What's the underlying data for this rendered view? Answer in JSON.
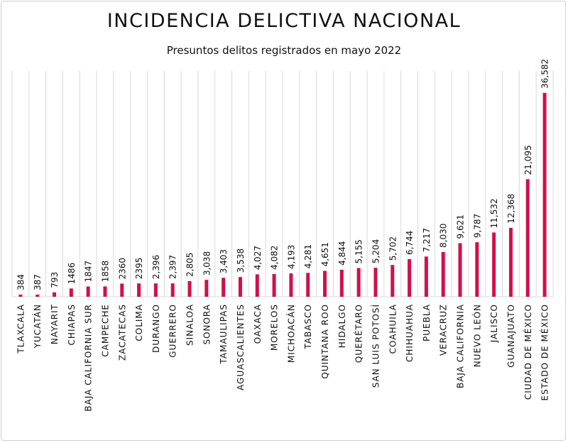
{
  "chart_data": {
    "type": "bar",
    "title": "INCIDENCIA DELICTIVA NACIONAL",
    "subtitle": "Presuntos delitos registrados en mayo 2022",
    "xlabel": "",
    "ylabel": "",
    "ylim": [
      0,
      40000
    ],
    "grid": "vertical separators",
    "bar_color": "#d0104c",
    "categories": [
      "TLAXCALA",
      "YUCATÁN",
      "NAYARIT",
      "CHIAPAS",
      "BAJA CALIFORNIA SUR",
      "CAMPECHE",
      "ZACATECAS",
      "COLIMA",
      "DURANGO",
      "GUERRERO",
      "SINALOA",
      "SONORA",
      "TAMAULIPAS",
      "AGUASCALIENTES",
      "OAXACA",
      "MORELOS",
      "MICHOACÁN",
      "TABASCO",
      "QUINTANA ROO",
      "HIDALGO",
      "QUERÉTARO",
      "SAN LUIS POTOSÍ",
      "COAHUILA",
      "CHIHUAHUA",
      "PUEBLA",
      "VERACRUZ",
      "BAJA CALIFORNIA",
      "NUEVO LEÓN",
      "JALISCO",
      "GUANAJUATO",
      "CIUDAD DE MÉXICO",
      "ESTADO DE MÉXICO"
    ],
    "values": [
      384,
      387,
      793,
      1486,
      1847,
      1858,
      2360,
      2395,
      2396,
      2397,
      2805,
      3038,
      3403,
      3538,
      4027,
      4082,
      4193,
      4281,
      4651,
      4844,
      5155,
      5204,
      5702,
      6744,
      7217,
      8030,
      9621,
      9787,
      11532,
      12368,
      21095,
      36582
    ],
    "labels": [
      "384",
      "387",
      "793",
      "1486",
      "1847",
      "1858",
      "2360",
      "2395",
      "2,396",
      "2,397",
      "2,805",
      "3,038",
      "3,403",
      "3,538",
      "4,027",
      "4,082",
      "4,193",
      "4,281",
      "4,651",
      "4,844",
      "5,155",
      "5,204",
      "5,702",
      "6,744",
      "7,217",
      "8,030",
      "9,621",
      "9,787",
      "11,532",
      "12,368",
      "21,095",
      "36,582"
    ]
  }
}
